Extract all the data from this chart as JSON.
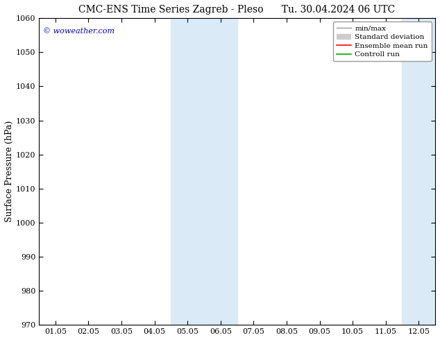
{
  "title_left": "CMC-ENS Time Series Zagreb - Pleso",
  "title_right": "Tu. 30.04.2024 06 UTC",
  "ylabel": "Surface Pressure (hPa)",
  "ylim": [
    970,
    1060
  ],
  "yticks": [
    970,
    980,
    990,
    1000,
    1010,
    1020,
    1030,
    1040,
    1050,
    1060
  ],
  "xtick_labels": [
    "01.05",
    "02.05",
    "03.05",
    "04.05",
    "05.05",
    "06.05",
    "07.05",
    "08.05",
    "09.05",
    "10.05",
    "11.05",
    "12.05"
  ],
  "x_positions": [
    0,
    1,
    2,
    3,
    4,
    5,
    6,
    7,
    8,
    9,
    10,
    11
  ],
  "shaded_bands": [
    {
      "xmin": 3.5,
      "xmax": 5.5
    },
    {
      "xmin": 10.5,
      "xmax": 12.5
    }
  ],
  "shade_color": "#daeaf7",
  "shade_alpha": 1.0,
  "watermark": "© woweather.com",
  "watermark_color": "#0000cc",
  "watermark_fontsize": 8,
  "legend_labels": [
    "min/max",
    "Standard deviation",
    "Ensemble mean run",
    "Controll run"
  ],
  "legend_colors": [
    "#999999",
    "#cccccc",
    "#ff0000",
    "#00aa00"
  ],
  "bg_color": "#ffffff",
  "title_fontsize": 10,
  "ylabel_fontsize": 9,
  "tick_fontsize": 8,
  "legend_fontsize": 7.5
}
